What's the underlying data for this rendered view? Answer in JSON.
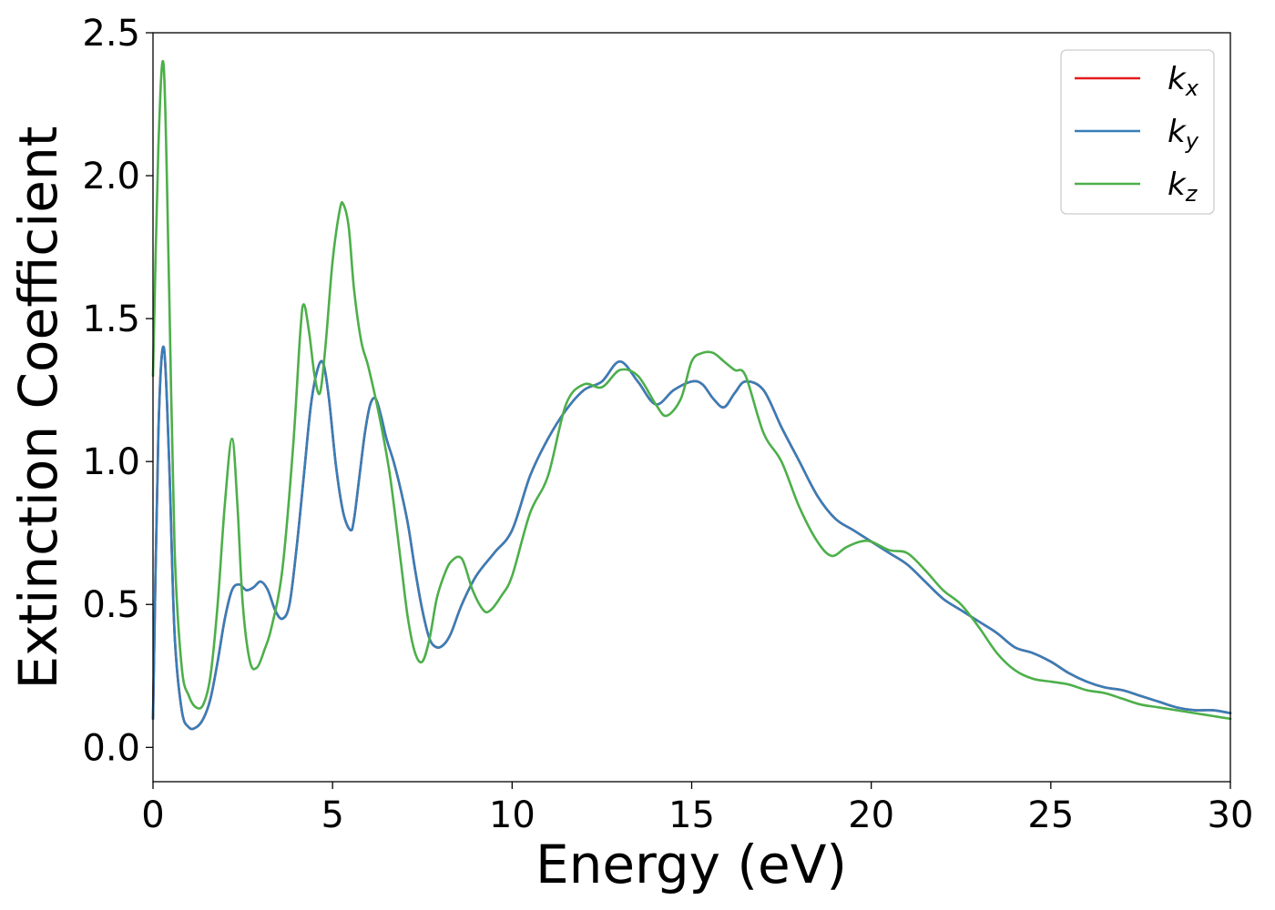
{
  "chart_data": {
    "type": "line",
    "xlabel": "Energy (eV)",
    "ylabel": "Extinction Coefficient",
    "xlim": [
      0,
      30
    ],
    "ylim": [
      -0.12,
      2.5
    ],
    "xticks": [
      "0",
      "5",
      "10",
      "15",
      "20",
      "25",
      "30"
    ],
    "yticks": [
      "0.0",
      "0.5",
      "1.0",
      "1.5",
      "2.0",
      "2.5"
    ],
    "grid": false,
    "legend_position": "top-right",
    "series": [
      {
        "name": "k_x",
        "legend_main": "k",
        "legend_sub": "x",
        "color": "#e41a1c",
        "x": [
          0,
          0.15,
          0.3,
          0.45,
          0.6,
          0.8,
          1.0,
          1.2,
          1.4,
          1.6,
          1.8,
          2.0,
          2.2,
          2.4,
          2.6,
          2.8,
          3.0,
          3.2,
          3.4,
          3.6,
          3.8,
          4.0,
          4.2,
          4.4,
          4.6,
          4.75,
          4.9,
          5.1,
          5.3,
          5.5,
          5.6,
          5.75,
          5.9,
          6.05,
          6.2,
          6.35,
          6.5,
          6.7,
          6.9,
          7.1,
          7.3,
          7.5,
          7.7,
          7.9,
          8.1,
          8.3,
          8.6,
          9.0,
          9.5,
          10.0,
          10.5,
          11.0,
          11.5,
          12.0,
          12.5,
          13.0,
          13.5,
          14.0,
          14.5,
          15.0,
          15.3,
          15.6,
          15.9,
          16.2,
          16.5,
          17.0,
          17.5,
          18.0,
          18.5,
          19.0,
          19.5,
          20.0,
          20.5,
          21.0,
          21.5,
          22.0,
          22.5,
          23.0,
          23.5,
          24.0,
          24.5,
          25.0,
          25.5,
          26.0,
          26.5,
          27.0,
          27.5,
          28.0,
          28.5,
          29.0,
          29.5,
          30.0
        ],
        "y": [
          0.1,
          1.1,
          1.4,
          1.0,
          0.4,
          0.13,
          0.07,
          0.07,
          0.1,
          0.17,
          0.3,
          0.45,
          0.55,
          0.57,
          0.55,
          0.56,
          0.58,
          0.55,
          0.48,
          0.45,
          0.5,
          0.7,
          0.95,
          1.2,
          1.33,
          1.34,
          1.22,
          0.98,
          0.82,
          0.76,
          0.8,
          0.95,
          1.1,
          1.2,
          1.22,
          1.16,
          1.08,
          1.0,
          0.9,
          0.78,
          0.62,
          0.48,
          0.38,
          0.35,
          0.36,
          0.4,
          0.5,
          0.6,
          0.68,
          0.76,
          0.95,
          1.08,
          1.18,
          1.25,
          1.28,
          1.35,
          1.28,
          1.2,
          1.25,
          1.28,
          1.27,
          1.22,
          1.19,
          1.24,
          1.28,
          1.25,
          1.12,
          1.0,
          0.88,
          0.8,
          0.76,
          0.72,
          0.68,
          0.64,
          0.58,
          0.52,
          0.48,
          0.44,
          0.4,
          0.35,
          0.33,
          0.3,
          0.26,
          0.23,
          0.21,
          0.2,
          0.18,
          0.16,
          0.14,
          0.13,
          0.13,
          0.12
        ]
      },
      {
        "name": "k_y",
        "legend_main": "k",
        "legend_sub": "y",
        "color": "#377eb8",
        "x": [
          0,
          0.15,
          0.3,
          0.45,
          0.6,
          0.8,
          1.0,
          1.2,
          1.4,
          1.6,
          1.8,
          2.0,
          2.2,
          2.4,
          2.6,
          2.8,
          3.0,
          3.2,
          3.4,
          3.6,
          3.8,
          4.0,
          4.2,
          4.4,
          4.6,
          4.75,
          4.9,
          5.1,
          5.3,
          5.5,
          5.6,
          5.75,
          5.9,
          6.05,
          6.2,
          6.35,
          6.5,
          6.7,
          6.9,
          7.1,
          7.3,
          7.5,
          7.7,
          7.9,
          8.1,
          8.3,
          8.6,
          9.0,
          9.5,
          10.0,
          10.5,
          11.0,
          11.5,
          12.0,
          12.5,
          13.0,
          13.5,
          14.0,
          14.5,
          15.0,
          15.3,
          15.6,
          15.9,
          16.2,
          16.5,
          17.0,
          17.5,
          18.0,
          18.5,
          19.0,
          19.5,
          20.0,
          20.5,
          21.0,
          21.5,
          22.0,
          22.5,
          23.0,
          23.5,
          24.0,
          24.5,
          25.0,
          25.5,
          26.0,
          26.5,
          27.0,
          27.5,
          28.0,
          28.5,
          29.0,
          29.5,
          30.0
        ],
        "y": [
          0.1,
          1.1,
          1.4,
          1.0,
          0.4,
          0.13,
          0.07,
          0.07,
          0.1,
          0.17,
          0.3,
          0.45,
          0.55,
          0.57,
          0.55,
          0.56,
          0.58,
          0.55,
          0.48,
          0.45,
          0.5,
          0.7,
          0.95,
          1.2,
          1.33,
          1.34,
          1.22,
          0.98,
          0.82,
          0.76,
          0.8,
          0.95,
          1.1,
          1.2,
          1.22,
          1.16,
          1.08,
          1.0,
          0.9,
          0.78,
          0.62,
          0.48,
          0.38,
          0.35,
          0.36,
          0.4,
          0.5,
          0.6,
          0.68,
          0.76,
          0.95,
          1.08,
          1.18,
          1.25,
          1.28,
          1.35,
          1.28,
          1.2,
          1.25,
          1.28,
          1.27,
          1.22,
          1.19,
          1.24,
          1.28,
          1.25,
          1.12,
          1.0,
          0.88,
          0.8,
          0.76,
          0.72,
          0.68,
          0.64,
          0.58,
          0.52,
          0.48,
          0.44,
          0.4,
          0.35,
          0.33,
          0.3,
          0.26,
          0.23,
          0.21,
          0.2,
          0.18,
          0.16,
          0.14,
          0.13,
          0.13,
          0.12
        ]
      },
      {
        "name": "k_z",
        "legend_main": "k",
        "legend_sub": "z",
        "color": "#4daf4a",
        "x": [
          0,
          0.15,
          0.3,
          0.45,
          0.6,
          0.8,
          1.0,
          1.2,
          1.4,
          1.6,
          1.8,
          2.0,
          2.2,
          2.35,
          2.5,
          2.7,
          2.9,
          3.1,
          3.3,
          3.6,
          3.9,
          4.1,
          4.2,
          4.35,
          4.5,
          4.65,
          4.8,
          5.0,
          5.2,
          5.3,
          5.45,
          5.6,
          5.8,
          6.0,
          6.3,
          6.6,
          6.9,
          7.1,
          7.3,
          7.5,
          7.7,
          7.9,
          8.1,
          8.3,
          8.6,
          8.9,
          9.2,
          9.4,
          9.7,
          10.0,
          10.5,
          11.0,
          11.5,
          12.0,
          12.5,
          13.0,
          13.5,
          14.0,
          14.3,
          14.7,
          15.0,
          15.3,
          15.6,
          15.9,
          16.2,
          16.5,
          17.0,
          17.5,
          18.0,
          18.5,
          18.9,
          19.3,
          19.7,
          20.0,
          20.5,
          21.0,
          21.5,
          22.0,
          22.5,
          23.0,
          23.5,
          24.0,
          24.5,
          25.0,
          25.5,
          26.0,
          26.5,
          27.0,
          27.5,
          28.0,
          28.5,
          29.0,
          29.5,
          30.0
        ],
        "y": [
          1.3,
          2.1,
          2.38,
          1.6,
          0.7,
          0.28,
          0.18,
          0.14,
          0.15,
          0.25,
          0.5,
          0.85,
          1.08,
          0.85,
          0.5,
          0.3,
          0.28,
          0.34,
          0.42,
          0.62,
          1.05,
          1.45,
          1.55,
          1.45,
          1.3,
          1.24,
          1.4,
          1.7,
          1.88,
          1.9,
          1.82,
          1.6,
          1.42,
          1.33,
          1.16,
          0.95,
          0.65,
          0.45,
          0.33,
          0.3,
          0.38,
          0.52,
          0.6,
          0.65,
          0.66,
          0.55,
          0.48,
          0.48,
          0.53,
          0.6,
          0.82,
          0.95,
          1.2,
          1.27,
          1.26,
          1.32,
          1.3,
          1.2,
          1.16,
          1.22,
          1.35,
          1.38,
          1.38,
          1.35,
          1.32,
          1.3,
          1.1,
          1.0,
          0.84,
          0.72,
          0.67,
          0.7,
          0.72,
          0.72,
          0.69,
          0.68,
          0.62,
          0.55,
          0.5,
          0.42,
          0.33,
          0.27,
          0.24,
          0.23,
          0.22,
          0.2,
          0.19,
          0.17,
          0.15,
          0.14,
          0.13,
          0.12,
          0.11,
          0.1
        ]
      }
    ]
  }
}
